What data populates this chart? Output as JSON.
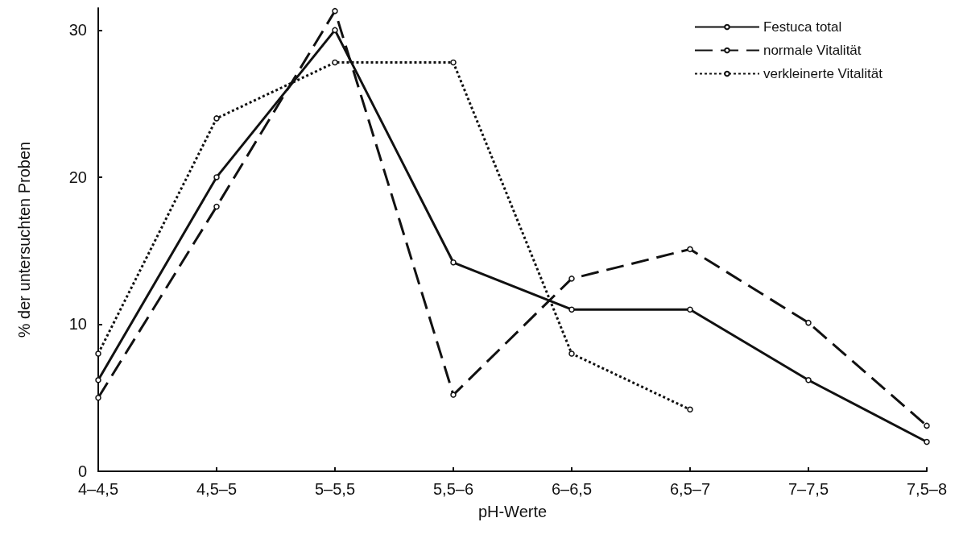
{
  "chart_data": {
    "type": "line",
    "xlabel": "pH-Werte",
    "ylabel": "% der untersuchten Proben",
    "categories": [
      "4–4,5",
      "4,5–5",
      "5–5,5",
      "5,5–6",
      "6–6,5",
      "6,5–7",
      "7–7,5",
      "7,5–8"
    ],
    "series": [
      {
        "name": "Festuca total",
        "color": "#111111",
        "line_style": "solid",
        "values": [
          6.2,
          20,
          30,
          14.2,
          11,
          11,
          6.2,
          2
        ]
      },
      {
        "name": "normale Vitalität",
        "color": "#111111",
        "line_style": "dashed",
        "values": [
          5,
          18,
          31.3,
          5.2,
          13.1,
          15.1,
          10.1,
          3.1
        ]
      },
      {
        "name": "verkleinerte Vitalität",
        "color": "#111111",
        "line_style": "dotted",
        "values": [
          8,
          24,
          27.8,
          27.8,
          8,
          4.2,
          null,
          null
        ]
      }
    ],
    "ylim": [
      0,
      31.5
    ],
    "yticks": [
      0,
      10,
      20,
      30
    ],
    "grid": false,
    "legend": "top right",
    "marker": "circle"
  }
}
